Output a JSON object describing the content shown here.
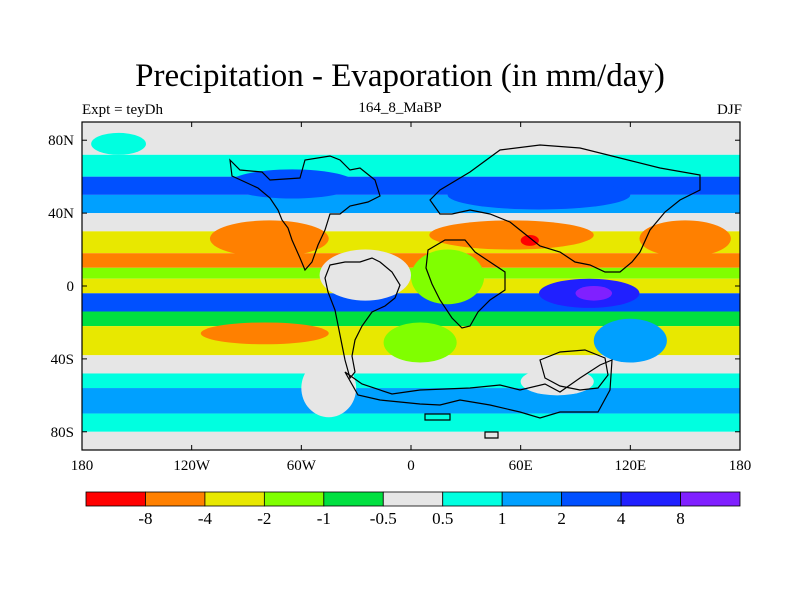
{
  "chart_data": {
    "type": "heatmap",
    "title": "Precipitation - Evaporation (in mm/day)",
    "left_label": "Expt = teyDh",
    "center_label": "164_8_MaBP",
    "right_label": "DJF",
    "x_ticks": [
      {
        "value": -180,
        "label": "180"
      },
      {
        "value": -120,
        "label": "120W"
      },
      {
        "value": -60,
        "label": "60W"
      },
      {
        "value": 0,
        "label": "0"
      },
      {
        "value": 60,
        "label": "60E"
      },
      {
        "value": 120,
        "label": "120E"
      },
      {
        "value": 180,
        "label": "180"
      }
    ],
    "y_ticks": [
      {
        "value": 80,
        "label": "80N"
      },
      {
        "value": 40,
        "label": "40N"
      },
      {
        "value": 0,
        "label": "0"
      },
      {
        "value": -40,
        "label": "40S"
      },
      {
        "value": -80,
        "label": "80S"
      }
    ],
    "xlim": [
      -180,
      180
    ],
    "ylim": [
      -90,
      90
    ],
    "colorbar": {
      "colors": [
        "#ff0000",
        "#ff8000",
        "#e8e800",
        "#80ff00",
        "#00e040",
        "#e6e6e6",
        "#00ffe0",
        "#00a0ff",
        "#0050ff",
        "#2020ff",
        "#8020ff"
      ],
      "labels": [
        "-8",
        "-4",
        "-2",
        "-1",
        "-0.5",
        "0.5",
        "1",
        "2",
        "4",
        "8"
      ]
    },
    "bands": [
      {
        "lat": [
          72,
          90
        ],
        "level": 5
      },
      {
        "lat": [
          60,
          72
        ],
        "level": 6
      },
      {
        "lat": [
          50,
          60
        ],
        "level": 8
      },
      {
        "lat": [
          40,
          50
        ],
        "level": 7
      },
      {
        "lat": [
          30,
          40
        ],
        "level": 5
      },
      {
        "lat": [
          18,
          30
        ],
        "level": 2
      },
      {
        "lat": [
          10,
          18
        ],
        "level": 1
      },
      {
        "lat": [
          4,
          10
        ],
        "level": 3
      },
      {
        "lat": [
          -4,
          4
        ],
        "level": 2
      },
      {
        "lat": [
          -14,
          -4
        ],
        "level": 8
      },
      {
        "lat": [
          -22,
          -14
        ],
        "level": 4
      },
      {
        "lat": [
          -38,
          -22
        ],
        "level": 2
      },
      {
        "lat": [
          -48,
          -38
        ],
        "level": 5
      },
      {
        "lat": [
          -56,
          -48
        ],
        "level": 6
      },
      {
        "lat": [
          -70,
          -56
        ],
        "level": 7
      },
      {
        "lat": [
          -80,
          -70
        ],
        "level": 6
      },
      {
        "lat": [
          -90,
          -80
        ],
        "level": 5
      }
    ],
    "patches": [
      {
        "lon": [
          -110,
          -45
        ],
        "lat": [
          16,
          36
        ],
        "level": 1
      },
      {
        "lon": [
          125,
          175
        ],
        "lat": [
          16,
          36
        ],
        "level": 1
      },
      {
        "lon": [
          -115,
          -45
        ],
        "lat": [
          -32,
          -20
        ],
        "level": 1
      },
      {
        "lon": [
          -50,
          0
        ],
        "lat": [
          -8,
          20
        ],
        "level": 5
      },
      {
        "lon": [
          0,
          40
        ],
        "lat": [
          -10,
          20
        ],
        "level": 3
      },
      {
        "lon": [
          10,
          100
        ],
        "lat": [
          20,
          36
        ],
        "level": 1
      },
      {
        "lon": [
          60,
          70
        ],
        "lat": [
          22,
          28
        ],
        "level": 0
      },
      {
        "lon": [
          70,
          125
        ],
        "lat": [
          -12,
          4
        ],
        "level": 9
      },
      {
        "lon": [
          90,
          110
        ],
        "lat": [
          -8,
          0
        ],
        "level": 10
      },
      {
        "lon": [
          100,
          140
        ],
        "lat": [
          -42,
          -18
        ],
        "level": 7
      },
      {
        "lon": [
          -60,
          -30
        ],
        "lat": [
          -72,
          -40
        ],
        "level": 5
      },
      {
        "lon": [
          60,
          100
        ],
        "lat": [
          -60,
          -45
        ],
        "level": 5
      },
      {
        "lon": [
          -100,
          -30
        ],
        "lat": [
          48,
          64
        ],
        "level": 8
      },
      {
        "lon": [
          20,
          120
        ],
        "lat": [
          42,
          58
        ],
        "level": 8
      },
      {
        "lon": [
          -15,
          25
        ],
        "lat": [
          -42,
          -20
        ],
        "level": 3
      },
      {
        "lon": [
          -175,
          -145
        ],
        "lat": [
          72,
          84
        ],
        "level": 6
      }
    ]
  }
}
